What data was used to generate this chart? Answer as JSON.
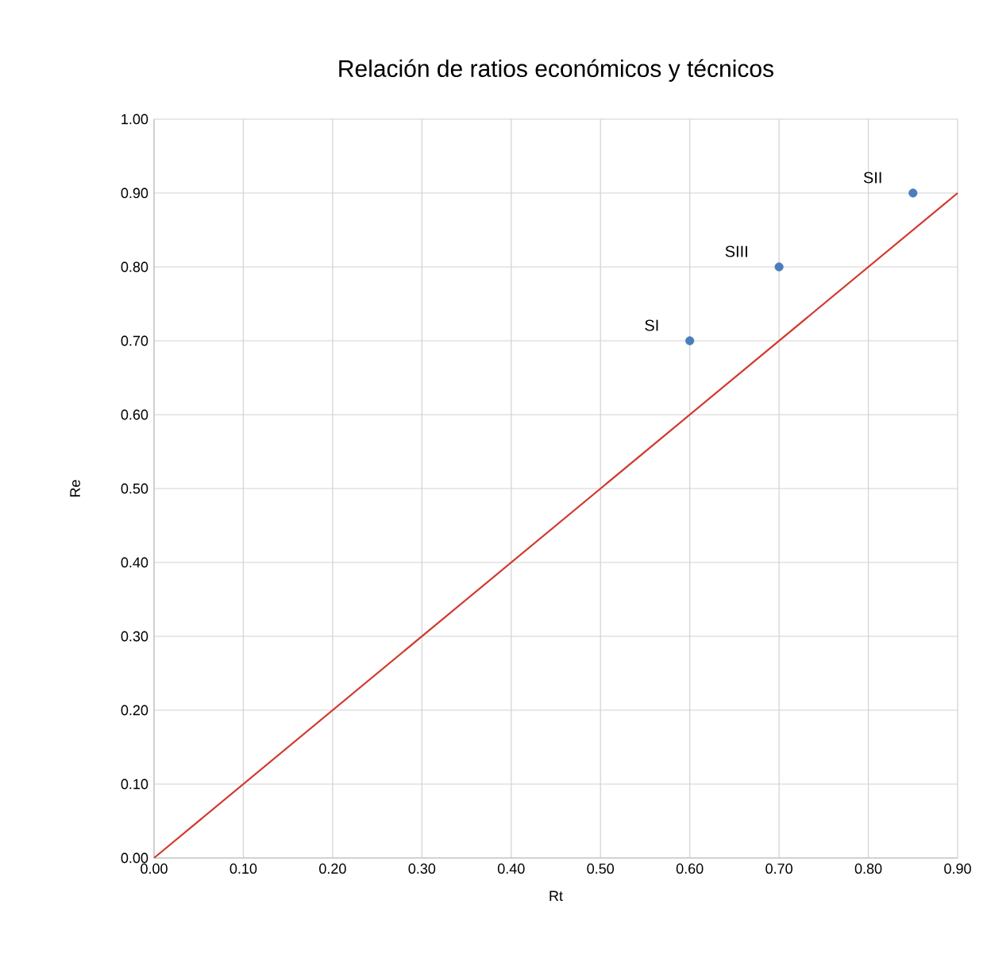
{
  "chart_data": {
    "type": "scatter",
    "title": "Relación de ratios económicos y técnicos",
    "xlabel": "Rt",
    "ylabel": "Re",
    "xlim": [
      0,
      0.9
    ],
    "ylim": [
      0,
      1.0
    ],
    "xticks": [
      {
        "value": 0,
        "label": "0.00"
      },
      {
        "value": 0.1,
        "label": "0.10"
      },
      {
        "value": 0.2,
        "label": "0.20"
      },
      {
        "value": 0.3,
        "label": "0.30"
      },
      {
        "value": 0.4,
        "label": "0.40"
      },
      {
        "value": 0.5,
        "label": "0.50"
      },
      {
        "value": 0.6,
        "label": "0.60"
      },
      {
        "value": 0.7,
        "label": "0.70"
      },
      {
        "value": 0.8,
        "label": "0.80"
      },
      {
        "value": 0.9,
        "label": "0.90"
      }
    ],
    "yticks": [
      {
        "value": 0,
        "label": "0.00"
      },
      {
        "value": 0.1,
        "label": "0.10"
      },
      {
        "value": 0.2,
        "label": "0.20"
      },
      {
        "value": 0.3,
        "label": "0.30"
      },
      {
        "value": 0.4,
        "label": "0.40"
      },
      {
        "value": 0.5,
        "label": "0.50"
      },
      {
        "value": 0.6,
        "label": "0.60"
      },
      {
        "value": 0.7,
        "label": "0.70"
      },
      {
        "value": 0.8,
        "label": "0.80"
      },
      {
        "value": 0.9,
        "label": "0.90"
      },
      {
        "value": 1.0,
        "label": "1.00"
      }
    ],
    "grid": true,
    "series": [
      {
        "color": "#4a7ebb",
        "marker": "circle",
        "x": [
          0.6,
          0.7,
          0.85
        ],
        "values": [
          0.7,
          0.8,
          0.9
        ]
      },
      {
        "type": "line",
        "marker": "none",
        "color": "#d03a2f",
        "x": [
          0,
          0.9
        ],
        "values": [
          0,
          0.9
        ]
      }
    ],
    "annotations": [
      {
        "text": "SI",
        "x": 0.6,
        "y": 0.7
      },
      {
        "text": "SIII",
        "x": 0.7,
        "y": 0.8
      },
      {
        "text": "SII",
        "x": 0.85,
        "y": 0.9
      }
    ]
  }
}
